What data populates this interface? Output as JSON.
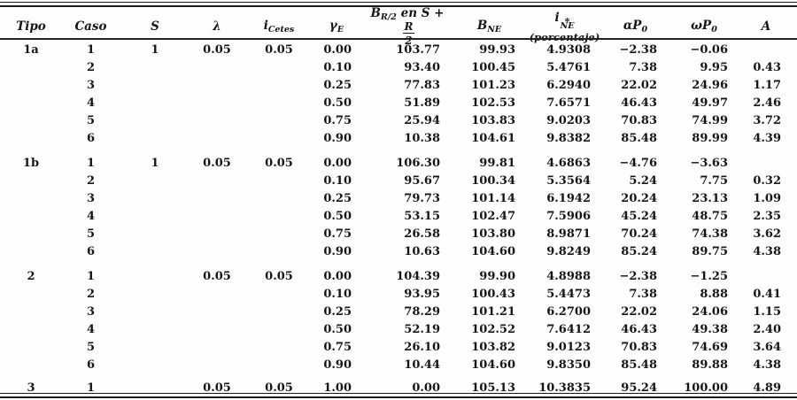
{
  "table": {
    "columns": [
      {
        "id": "tipo",
        "segments": [
          {
            "t": "Tipo"
          }
        ]
      },
      {
        "id": "caso",
        "segments": [
          {
            "t": "Caso"
          }
        ]
      },
      {
        "id": "s",
        "segments": [
          {
            "t": "S"
          }
        ]
      },
      {
        "id": "lambda",
        "segments": [
          {
            "t": "λ"
          }
        ]
      },
      {
        "id": "i-cetes",
        "segments": [
          {
            "t": "i"
          },
          {
            "sub": "Cetes"
          }
        ]
      },
      {
        "id": "gamma-e",
        "segments": [
          {
            "t": "γ"
          },
          {
            "sub": "E"
          }
        ]
      },
      {
        "id": "b-r2",
        "segments": [
          {
            "t": "B"
          },
          {
            "sub": "R/2"
          },
          {
            "t": " en S + "
          },
          {
            "frac": {
              "num": "R",
              "den": "2"
            }
          }
        ]
      },
      {
        "id": "b-ne",
        "segments": [
          {
            "t": "B"
          },
          {
            "sub": "NE"
          }
        ]
      },
      {
        "id": "i-ne",
        "segments": [
          {
            "t": "i"
          },
          {
            "stack": {
              "top": "*",
              "bottom": "NE"
            }
          }
        ],
        "note": "(porcentaje)"
      },
      {
        "id": "alpha-p0",
        "segments": [
          {
            "t": "αP"
          },
          {
            "sub": "0"
          }
        ]
      },
      {
        "id": "omega-p0",
        "segments": [
          {
            "t": "ωP"
          },
          {
            "sub": "0"
          }
        ]
      },
      {
        "id": "a",
        "segments": [
          {
            "t": "A"
          }
        ]
      }
    ],
    "groups": [
      {
        "tipo": "1a",
        "rows": [
          [
            "1a",
            "1",
            "1",
            "0.05",
            "0.05",
            "0.00",
            "103.77",
            "99.93",
            "4.9308",
            "−2.38",
            "−0.06",
            ""
          ],
          [
            "",
            "2",
            "",
            "",
            "",
            "0.10",
            "93.40",
            "100.45",
            "5.4761",
            "7.38",
            "9.95",
            "0.43"
          ],
          [
            "",
            "3",
            "",
            "",
            "",
            "0.25",
            "77.83",
            "101.23",
            "6.2940",
            "22.02",
            "24.96",
            "1.17"
          ],
          [
            "",
            "4",
            "",
            "",
            "",
            "0.50",
            "51.89",
            "102.53",
            "7.6571",
            "46.43",
            "49.97",
            "2.46"
          ],
          [
            "",
            "5",
            "",
            "",
            "",
            "0.75",
            "25.94",
            "103.83",
            "9.0203",
            "70.83",
            "74.99",
            "3.72"
          ],
          [
            "",
            "6",
            "",
            "",
            "",
            "0.90",
            "10.38",
            "104.61",
            "9.8382",
            "85.48",
            "89.99",
            "4.39"
          ]
        ]
      },
      {
        "tipo": "1b",
        "rows": [
          [
            "1b",
            "1",
            "1",
            "0.05",
            "0.05",
            "0.00",
            "106.30",
            "99.81",
            "4.6863",
            "−4.76",
            "−3.63",
            ""
          ],
          [
            "",
            "2",
            "",
            "",
            "",
            "0.10",
            "95.67",
            "100.34",
            "5.3564",
            "5.24",
            "7.75",
            "0.32"
          ],
          [
            "",
            "3",
            "",
            "",
            "",
            "0.25",
            "79.73",
            "101.14",
            "6.1942",
            "20.24",
            "23.13",
            "1.09"
          ],
          [
            "",
            "4",
            "",
            "",
            "",
            "0.50",
            "53.15",
            "102.47",
            "7.5906",
            "45.24",
            "48.75",
            "2.35"
          ],
          [
            "",
            "5",
            "",
            "",
            "",
            "0.75",
            "26.58",
            "103.80",
            "8.9871",
            "70.24",
            "74.38",
            "3.62"
          ],
          [
            "",
            "6",
            "",
            "",
            "",
            "0.90",
            "10.63",
            "104.60",
            "9.8249",
            "85.24",
            "89.75",
            "4.38"
          ]
        ]
      },
      {
        "tipo": "2",
        "rows": [
          [
            "2",
            "1",
            "",
            "0.05",
            "0.05",
            "0.00",
            "104.39",
            "99.90",
            "4.8988",
            "−2.38",
            "−1.25",
            ""
          ],
          [
            "",
            "2",
            "",
            "",
            "",
            "0.10",
            "93.95",
            "100.43",
            "5.4473",
            "7.38",
            "8.88",
            "0.41"
          ],
          [
            "",
            "3",
            "",
            "",
            "",
            "0.25",
            "78.29",
            "101.21",
            "6.2700",
            "22.02",
            "24.06",
            "1.15"
          ],
          [
            "",
            "4",
            "",
            "",
            "",
            "0.50",
            "52.19",
            "102.52",
            "7.6412",
            "46.43",
            "49.38",
            "2.40"
          ],
          [
            "",
            "5",
            "",
            "",
            "",
            "0.75",
            "26.10",
            "103.82",
            "9.0123",
            "70.83",
            "74.69",
            "3.64"
          ],
          [
            "",
            "6",
            "",
            "",
            "",
            "0.90",
            "10.44",
            "104.60",
            "9.8350",
            "85.48",
            "89.88",
            "4.38"
          ]
        ]
      },
      {
        "tipo": "3",
        "rows": [
          [
            "3",
            "1",
            "",
            "0.05",
            "0.05",
            "1.00",
            "0.00",
            "105.13",
            "10.3835",
            "95.24",
            "100.00",
            "4.89"
          ]
        ]
      }
    ]
  }
}
